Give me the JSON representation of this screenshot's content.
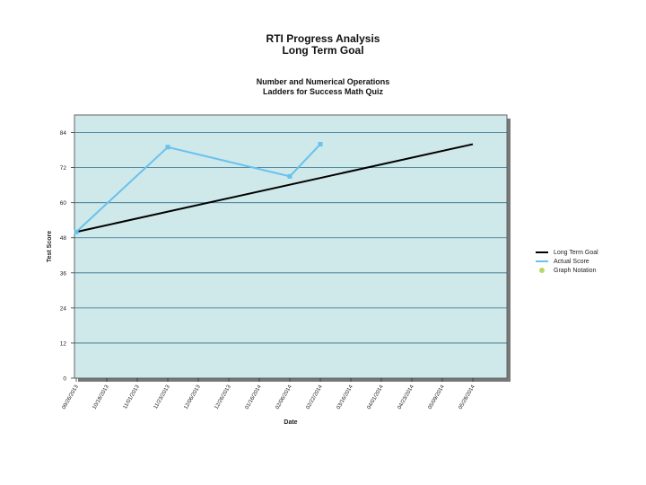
{
  "header": {
    "title": "RTI Progress Analysis",
    "subtitle": "Long Term Goal",
    "overlapped_label": "",
    "domain": "Number and Numerical Operations",
    "assessment": "Ladders for Success Math Quiz"
  },
  "colors": {
    "plot_bg": "#cfe8ea",
    "grid": "#2d6e88",
    "goal": "#000000",
    "actual": "#66c3ee",
    "notation": "#b7d76b"
  },
  "chart_data": {
    "type": "line",
    "xlabel": "Date",
    "ylabel": "Test Score",
    "ylim": [
      0,
      90
    ],
    "yticks": [
      0,
      12,
      24,
      36,
      48,
      60,
      72,
      84
    ],
    "x_categories": [
      "09/26/2013",
      "10/18/2013",
      "11/01/2013",
      "11/23/2013",
      "12/06/2013",
      "12/26/2013",
      "01/16/2014",
      "02/06/2014",
      "02/22/2014",
      "03/16/2014",
      "04/01/2014",
      "04/23/2014",
      "05/09/2014",
      "05/28/2014"
    ],
    "grid": true,
    "legend_position": "right",
    "series": [
      {
        "name": "Long Term Goal",
        "points": [
          [
            "09/26/2013",
            50
          ],
          [
            "05/28/2014",
            80
          ]
        ]
      },
      {
        "name": "Actual Score",
        "points": [
          [
            "09/26/2013",
            50
          ],
          [
            "11/23/2013",
            79
          ],
          [
            "02/06/2014",
            69
          ],
          [
            "02/22/2014",
            80
          ]
        ]
      },
      {
        "name": "Graph Notation",
        "points": []
      }
    ]
  }
}
